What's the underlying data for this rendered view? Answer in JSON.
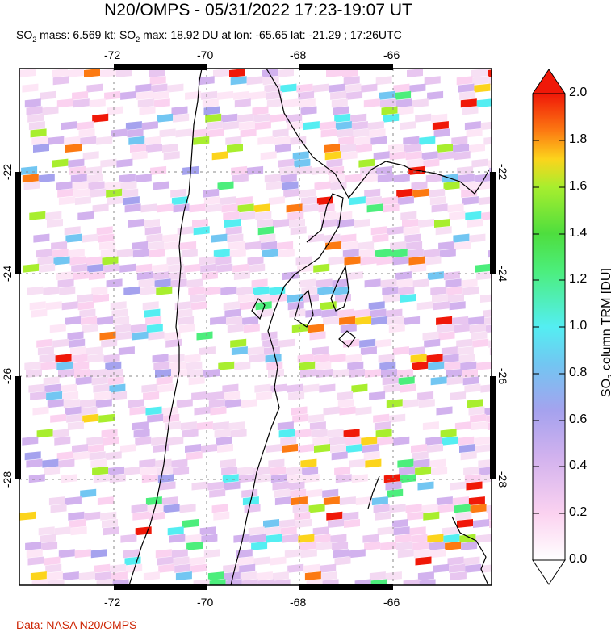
{
  "header": {
    "title": "N20/OMPS - 05/31/2022 17:23-19:07 UT",
    "subtitle_parts": [
      "SO",
      "2",
      " mass: 6.569 kt; SO",
      "2",
      " max: 18.92 DU at lon: -65.65 lat: -21.29 ; 17:26UTC"
    ]
  },
  "map": {
    "lon_range": [
      -74.0,
      -64.0
    ],
    "lat_range": [
      -30.5,
      -20.5
    ],
    "lon_ticks": [
      "-72",
      "-70",
      "-68",
      "-66"
    ],
    "lat_ticks": [
      "-22",
      "-24",
      "-26",
      "-28"
    ],
    "grid": true
  },
  "colorbar": {
    "ticks": [
      "2.0",
      "1.8",
      "1.6",
      "1.4",
      "1.2",
      "1.0",
      "0.8",
      "0.6",
      "0.4",
      "0.2",
      "0.0"
    ],
    "label_parts": [
      "SO",
      "2",
      " column TRM [DU]"
    ],
    "range": [
      0.0,
      2.0
    ],
    "colors": [
      "#ffffff",
      "#fbd2f0",
      "#d2b2ee",
      "#a5a2ee",
      "#72c6f2",
      "#54eef2",
      "#4cee7c",
      "#4ede3e",
      "#a8ee2e",
      "#fcd41c",
      "#fc7a12",
      "#f01808"
    ]
  },
  "credit": "Data: NASA N20/OMPS"
}
